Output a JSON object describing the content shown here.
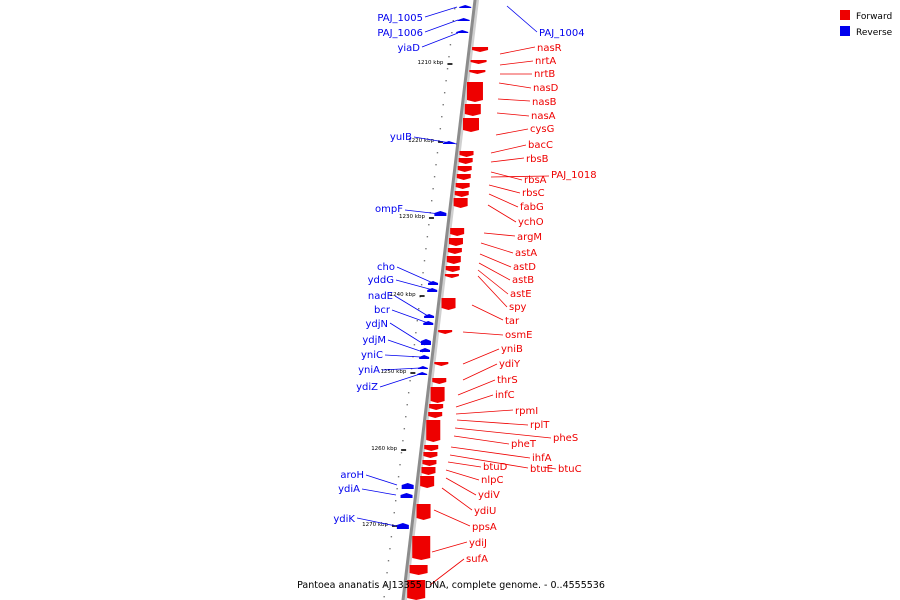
{
  "title": "Pantoea ananatis AJ13355 DNA, complete genome. - 0..4555536",
  "legend": [
    {
      "label": "Forward",
      "color": "#ee0000"
    },
    {
      "label": "Reverse",
      "color": "#0000ee"
    }
  ],
  "colors": {
    "forward": "#ee0000",
    "reverse": "#0000ee",
    "backbone": "#8c8c8c"
  },
  "ruler_labels": [
    "1210 kbp",
    "1220 kbp",
    "1230 kbp",
    "1240 kbp",
    "1250 kbp",
    "1260 kbp",
    "1270 kbp"
  ],
  "genes": [
    {
      "name": "PAJ_1005",
      "strand": "reverse"
    },
    {
      "name": "PAJ_1006",
      "strand": "reverse"
    },
    {
      "name": "yiaD",
      "strand": "reverse"
    },
    {
      "name": "PAJ_1004",
      "strand": "reverse"
    },
    {
      "name": "yuIB",
      "strand": "reverse"
    },
    {
      "name": "ompF",
      "strand": "reverse"
    },
    {
      "name": "cho",
      "strand": "reverse"
    },
    {
      "name": "yddG",
      "strand": "reverse"
    },
    {
      "name": "nadE",
      "strand": "reverse"
    },
    {
      "name": "bcr",
      "strand": "reverse"
    },
    {
      "name": "ydjN",
      "strand": "reverse"
    },
    {
      "name": "ydjM",
      "strand": "reverse"
    },
    {
      "name": "yniC",
      "strand": "reverse"
    },
    {
      "name": "yniA",
      "strand": "reverse"
    },
    {
      "name": "ydiZ",
      "strand": "reverse"
    },
    {
      "name": "aroH",
      "strand": "reverse"
    },
    {
      "name": "ydiA",
      "strand": "reverse"
    },
    {
      "name": "ydiK",
      "strand": "reverse"
    },
    {
      "name": "nasR",
      "strand": "forward"
    },
    {
      "name": "nrtA",
      "strand": "forward"
    },
    {
      "name": "nrtB",
      "strand": "forward"
    },
    {
      "name": "nasD",
      "strand": "forward"
    },
    {
      "name": "nasB",
      "strand": "forward"
    },
    {
      "name": "nasA",
      "strand": "forward"
    },
    {
      "name": "cysG",
      "strand": "forward"
    },
    {
      "name": "bacC",
      "strand": "forward"
    },
    {
      "name": "rbsB",
      "strand": "forward"
    },
    {
      "name": "rbsA",
      "strand": "forward"
    },
    {
      "name": "PAJ_1018",
      "strand": "forward"
    },
    {
      "name": "rbsC",
      "strand": "forward"
    },
    {
      "name": "fabG",
      "strand": "forward"
    },
    {
      "name": "ychO",
      "strand": "forward"
    },
    {
      "name": "argM",
      "strand": "forward"
    },
    {
      "name": "astA",
      "strand": "forward"
    },
    {
      "name": "astD",
      "strand": "forward"
    },
    {
      "name": "astB",
      "strand": "forward"
    },
    {
      "name": "astE",
      "strand": "forward"
    },
    {
      "name": "spy",
      "strand": "forward"
    },
    {
      "name": "tar",
      "strand": "forward"
    },
    {
      "name": "osmE",
      "strand": "forward"
    },
    {
      "name": "yniB",
      "strand": "forward"
    },
    {
      "name": "ydiY",
      "strand": "forward"
    },
    {
      "name": "thrS",
      "strand": "forward"
    },
    {
      "name": "infC",
      "strand": "forward"
    },
    {
      "name": "rpmI",
      "strand": "forward"
    },
    {
      "name": "rplT",
      "strand": "forward"
    },
    {
      "name": "pheS",
      "strand": "forward"
    },
    {
      "name": "pheT",
      "strand": "forward"
    },
    {
      "name": "ihfA",
      "strand": "forward"
    },
    {
      "name": "btuD",
      "strand": "forward"
    },
    {
      "name": "btuE",
      "strand": "forward"
    },
    {
      "name": "btuC",
      "strand": "forward"
    },
    {
      "name": "nlpC",
      "strand": "forward"
    },
    {
      "name": "ydiV",
      "strand": "forward"
    },
    {
      "name": "ydiU",
      "strand": "forward"
    },
    {
      "name": "ppsA",
      "strand": "forward"
    },
    {
      "name": "ydiJ",
      "strand": "forward"
    },
    {
      "name": "sufA",
      "strand": "forward"
    }
  ]
}
